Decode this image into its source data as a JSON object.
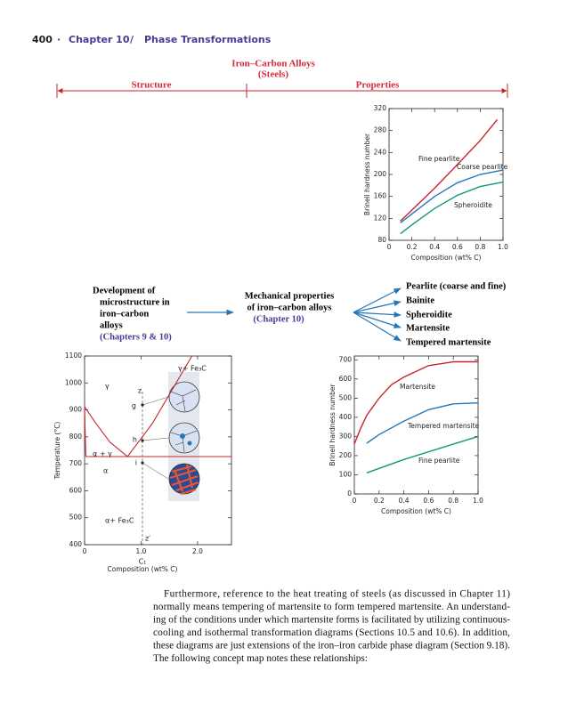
{
  "header": {
    "page": "400",
    "dot": "·",
    "chapter": "Chapter 10",
    "slash": "/",
    "section": "Phase Transformations"
  },
  "concept_map": {
    "title": "Iron–Carbon Alloys",
    "subtitle": "(Steels)",
    "left_branch": "Structure",
    "right_branch": "Properties",
    "development": [
      "Development of",
      "microstructure in",
      "iron–carbon",
      "alloys"
    ],
    "development_ref": "(Chapters 9 & 10)",
    "mechanical": [
      "Mechanical properties",
      "of iron–carbon alloys"
    ],
    "mechanical_ref": "(Chapter 10)",
    "microstructures": [
      "Pearlite (coarse and fine)",
      "Bainite",
      "Spheroidite",
      "Martensite",
      "Tempered martensite"
    ]
  },
  "charts": [
    {
      "type": "line",
      "x_label": "Composition (wt% C)",
      "y_label": "Brinell hardness number",
      "xlim": [
        0,
        1
      ],
      "ylim": [
        80,
        320
      ],
      "xticks": [
        0,
        0.2,
        0.4,
        0.6,
        0.8,
        {
          "value": 1,
          "label": "1.0"
        }
      ],
      "yticks": [
        80,
        120,
        160,
        200,
        240,
        280,
        320
      ],
      "series": [
        {
          "name": "Fine pearlite",
          "color": "#c8232c",
          "x": [
            0.1,
            0.2,
            0.4,
            0.6,
            0.8,
            0.95
          ],
          "values": [
            115,
            135,
            175,
            218,
            262,
            300
          ]
        },
        {
          "name": "Coarse pearlite",
          "color": "#2677b8",
          "x": [
            0.1,
            0.2,
            0.4,
            0.6,
            0.8,
            1.0
          ],
          "values": [
            112,
            128,
            160,
            185,
            200,
            208
          ]
        },
        {
          "name": "Spheroidite",
          "color": "#14967a",
          "x": [
            0.1,
            0.2,
            0.4,
            0.6,
            0.8,
            1.0
          ],
          "values": [
            92,
            108,
            138,
            162,
            178,
            186
          ]
        }
      ]
    },
    {
      "type": "line",
      "x_label": "Composition (wt% C)",
      "y_label": "Brinell hardness number",
      "xlim": [
        0,
        1
      ],
      "ylim": [
        0,
        720
      ],
      "xticks": [
        0,
        0.2,
        0.4,
        0.6,
        0.8,
        {
          "value": 1,
          "label": "1.0"
        }
      ],
      "yticks": [
        0,
        100,
        200,
        300,
        400,
        500,
        600,
        700
      ],
      "series": [
        {
          "name": "Martensite",
          "color": "#c8232c",
          "x": [
            0,
            0.05,
            0.1,
            0.2,
            0.3,
            0.4,
            0.6,
            0.8,
            1.0
          ],
          "values": [
            260,
            340,
            410,
            500,
            570,
            610,
            670,
            690,
            690
          ]
        },
        {
          "name": "Tempered martensite",
          "color": "#2677b8",
          "x": [
            0.1,
            0.2,
            0.4,
            0.6,
            0.8,
            1.0
          ],
          "values": [
            265,
            310,
            380,
            440,
            470,
            475
          ]
        },
        {
          "name": "Fine pearlite",
          "color": "#14967a",
          "x": [
            0.1,
            0.4,
            0.7,
            1.0
          ],
          "values": [
            110,
            180,
            240,
            300
          ]
        }
      ]
    },
    {
      "type": "phase",
      "x_label": "Composition (wt% C)",
      "y_label": "Temperature (°C)",
      "xlim": [
        0,
        2.6
      ],
      "ylim": [
        400,
        1100
      ],
      "xticks": [
        0,
        {
          "value": 1,
          "label": "1.0"
        },
        {
          "value": 2,
          "label": "2.0"
        }
      ],
      "yticks": [
        400,
        500,
        600,
        700,
        800,
        900,
        1000,
        1100
      ],
      "annotations": [
        "γ",
        "γ+ Fe₃C",
        "α + γ",
        "α",
        "α+ Fe₃C",
        "z",
        "z′",
        "g",
        "h",
        "i",
        "C₁"
      ],
      "series": [
        {
          "color": "#c8232c",
          "x": [
            0.022,
            2.6
          ],
          "values": [
            727,
            727
          ]
        },
        {
          "color": "#c8232c",
          "x": [
            0,
            0.2,
            0.45,
            0.76
          ],
          "values": [
            912,
            850,
            780,
            727
          ]
        },
        {
          "color": "#c8232c",
          "x": [
            0.76,
            1.2,
            1.9
          ],
          "values": [
            727,
            850,
            1100
          ]
        },
        {
          "color": "#c8232c",
          "x": [
            0,
            0.012,
            0.022
          ],
          "values": [
            912,
            800,
            727
          ]
        }
      ]
    }
  ],
  "body_text": [
    "Furthermore, reference to the heat treating of steels (as discussed in Chapter 11)",
    "normally means tempering of martensite to form tempered martensite. An understand-",
    "ing of the conditions under which martensite forms is facilitated by utilizing continuous-",
    "cooling and isothermal transformation diagrams (Sections 10.5 and 10.6). In addition,",
    "these diagrams are just extensions of the iron–iron carbide phase diagram (Section 9.18).",
    "The following concept map notes these relationships:"
  ]
}
